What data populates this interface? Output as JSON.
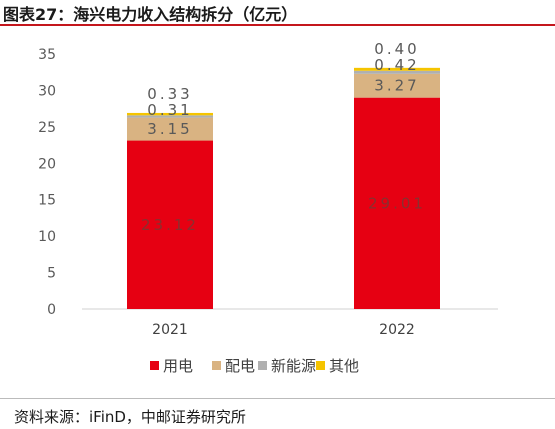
{
  "header": {
    "title": "图表27：海兴电力收入结构拆分（亿元）"
  },
  "footer": {
    "source": "资料来源：iFinD，中邮证券研究所"
  },
  "chart_data": {
    "type": "bar",
    "stacked": true,
    "categories": [
      "2021",
      "2022"
    ],
    "series": [
      {
        "name": "用电",
        "values": [
          23.12,
          29.01
        ],
        "labels": [
          "23.12",
          "29.01"
        ],
        "color": "#e60012"
      },
      {
        "name": "配电",
        "values": [
          3.15,
          3.27
        ],
        "labels": [
          "3.15",
          "3.27"
        ],
        "color": "#d9b382"
      },
      {
        "name": "新能源",
        "values": [
          0.31,
          0.42
        ],
        "labels": [
          "0.31",
          "0.42"
        ],
        "color": "#b0b0b0"
      },
      {
        "name": "其他",
        "values": [
          0.33,
          0.4
        ],
        "labels": [
          "0.33",
          "0.40"
        ],
        "color": "#f5c400"
      }
    ],
    "ylim": [
      0,
      35
    ],
    "yticks": [
      "0",
      "5",
      "10",
      "15",
      "20",
      "25",
      "30",
      "35"
    ],
    "legend_position": "bottom",
    "grid": false
  }
}
